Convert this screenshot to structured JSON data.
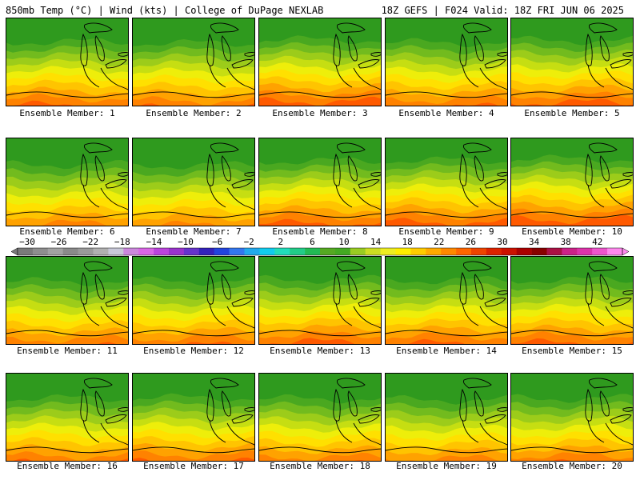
{
  "header": {
    "left": "850mb Temp (°C) | Wind (kts) | College of DuPage NEXLAB",
    "right": "18Z GEFS | F024 Valid: 18Z FRI JUN 06 2025"
  },
  "panels": [
    {
      "caption": "Ensemble Member: 1",
      "warmth": 0.55
    },
    {
      "caption": "Ensemble Member: 2",
      "warmth": 0.5
    },
    {
      "caption": "Ensemble Member: 3",
      "warmth": 0.62
    },
    {
      "caption": "Ensemble Member: 4",
      "warmth": 0.52
    },
    {
      "caption": "Ensemble Member: 5",
      "warmth": 0.6
    },
    {
      "caption": "Ensemble Member: 6",
      "warmth": 0.45
    },
    {
      "caption": "Ensemble Member: 7",
      "warmth": 0.42
    },
    {
      "caption": "Ensemble Member: 8",
      "warmth": 0.58
    },
    {
      "caption": "Ensemble Member: 9",
      "warmth": 0.6
    },
    {
      "caption": "Ensemble Member: 10",
      "warmth": 0.65
    },
    {
      "caption": "Ensemble Member: 11",
      "warmth": 0.5
    },
    {
      "caption": "Ensemble Member: 12",
      "warmth": 0.52
    },
    {
      "caption": "Ensemble Member: 13",
      "warmth": 0.58
    },
    {
      "caption": "Ensemble Member: 14",
      "warmth": 0.55
    },
    {
      "caption": "Ensemble Member: 15",
      "warmth": 0.56
    },
    {
      "caption": "Ensemble Member: 16",
      "warmth": 0.5
    },
    {
      "caption": "Ensemble Member: 17",
      "warmth": 0.52
    },
    {
      "caption": "Ensemble Member: 18",
      "warmth": 0.48
    },
    {
      "caption": "Ensemble Member: 19",
      "warmth": 0.45
    },
    {
      "caption": "Ensemble Member: 20",
      "warmth": 0.5
    }
  ],
  "colorbar": {
    "labels": [
      "−30",
      "−26",
      "−22",
      "−18",
      "−14",
      "−10",
      "−6",
      "−2",
      "2",
      "6",
      "10",
      "14",
      "18",
      "22",
      "26",
      "30",
      "34",
      "38",
      "42"
    ],
    "colors": [
      "#7a7a7a",
      "#8e8e8e",
      "#a2a2a2",
      "#8a8a8a",
      "#9a9a9a",
      "#b0b0b0",
      "#c8c8d8",
      "#cc88dd",
      "#d966e6",
      "#bb44dd",
      "#9933cc",
      "#6633cc",
      "#3322bb",
      "#2244dd",
      "#3377ee",
      "#22aaee",
      "#11ccee",
      "#22ddbb",
      "#22cc88",
      "#22bb55",
      "#55aa22",
      "#44aa22",
      "#99cc22",
      "#ccdd22",
      "#eeee22",
      "#ffee00",
      "#ffcc00",
      "#ffaa00",
      "#ff8800",
      "#ff6600",
      "#ee4400",
      "#dd2200",
      "#cc1100",
      "#aa0000",
      "#880000",
      "#aa1144",
      "#cc2288",
      "#dd33aa",
      "#ee55cc",
      "#ff88ee"
    ]
  }
}
